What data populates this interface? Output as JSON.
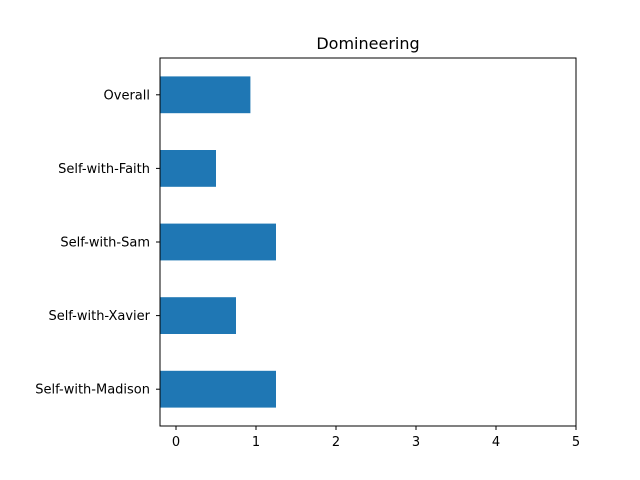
{
  "chart_data": {
    "type": "bar",
    "orientation": "horizontal",
    "title": "Domineering",
    "xlabel": "",
    "ylabel": "",
    "categories": [
      "Overall",
      "Self-with-Faith",
      "Self-with-Sam",
      "Self-with-Xavier",
      "Self-with-Madison"
    ],
    "values": [
      0.93,
      0.5,
      1.25,
      0.75,
      1.25
    ],
    "xlim": [
      -0.2,
      5
    ],
    "xticks": [
      0,
      1,
      2,
      3,
      4,
      5
    ],
    "grid": false,
    "bar_color": "#1f77b4"
  }
}
